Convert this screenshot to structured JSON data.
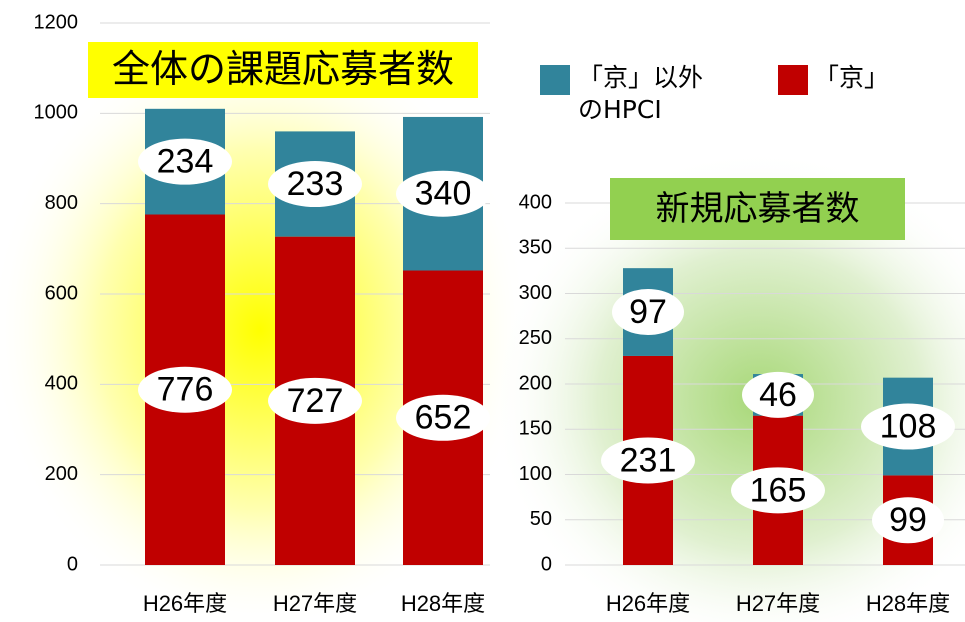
{
  "chart_data": [
    {
      "type": "bar",
      "stacked": true,
      "title": "全体の課題応募者数",
      "categories": [
        "H26年度",
        "H27年度",
        "H28年度"
      ],
      "series": [
        {
          "name": "「京」",
          "color": "#c00000",
          "values": [
            776,
            727,
            652
          ]
        },
        {
          "name": "「京」以外のHPCI",
          "color": "#31849b",
          "values": [
            234,
            233,
            340
          ]
        }
      ],
      "ylim": [
        0,
        1200
      ],
      "yticks": [
        0,
        200,
        400,
        600,
        800,
        1000,
        1200
      ],
      "grid": true
    },
    {
      "type": "bar",
      "stacked": true,
      "title": "新規応募者数",
      "categories": [
        "H26年度",
        "H27年度",
        "H28年度"
      ],
      "series": [
        {
          "color": "#c00000",
          "values": [
            231,
            165,
            99
          ]
        },
        {
          "color": "#31849b",
          "values": [
            97,
            46,
            108
          ]
        }
      ],
      "ylim": [
        0,
        400
      ],
      "yticks": [
        0,
        50,
        100,
        150,
        200,
        250,
        300,
        350,
        400
      ],
      "grid": true
    }
  ]
}
